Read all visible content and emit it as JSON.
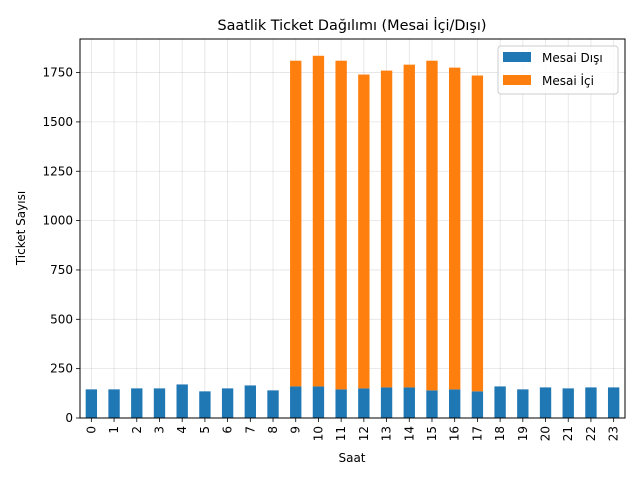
{
  "chart_data": {
    "type": "bar",
    "stacked": true,
    "title": "Saatlik Ticket Dağılımı (Mesai İçi/Dışı)",
    "xlabel": "Saat",
    "ylabel": "Ticket Sayısı",
    "categories": [
      "0",
      "1",
      "2",
      "3",
      "4",
      "5",
      "6",
      "7",
      "8",
      "9",
      "10",
      "11",
      "12",
      "13",
      "14",
      "15",
      "16",
      "17",
      "18",
      "19",
      "20",
      "21",
      "22",
      "23"
    ],
    "series": [
      {
        "name": "Mesai Dışı",
        "color": "#1f77b4",
        "values": [
          145,
          145,
          150,
          150,
          170,
          135,
          150,
          165,
          140,
          160,
          160,
          145,
          150,
          155,
          155,
          140,
          145,
          135,
          160,
          145,
          155,
          150,
          155,
          155
        ]
      },
      {
        "name": "Mesai İçi",
        "color": "#ff7f0e",
        "values": [
          0,
          0,
          0,
          0,
          0,
          0,
          0,
          0,
          0,
          1650,
          1675,
          1665,
          1590,
          1605,
          1635,
          1670,
          1630,
          1600,
          0,
          0,
          0,
          0,
          0,
          0
        ]
      }
    ],
    "ylim": [
      0,
      1920
    ],
    "yticks": [
      0,
      250,
      500,
      750,
      1000,
      1250,
      1500,
      1750
    ],
    "grid": true,
    "legend_position": "top-right"
  }
}
